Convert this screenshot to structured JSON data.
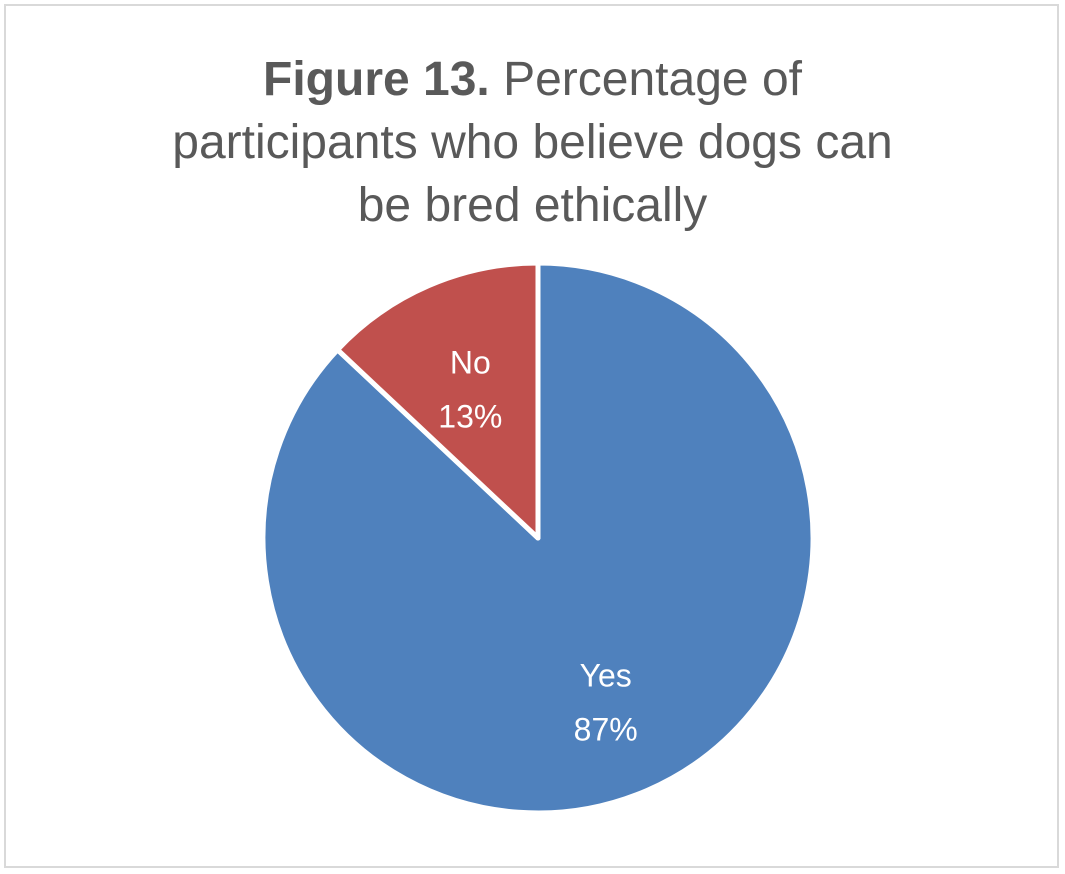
{
  "title": {
    "prefix": "Figure 13.",
    "line1": "Percentage of",
    "line2": "participants who believe dogs can",
    "line3": "be bred ethically"
  },
  "chart_data": {
    "type": "pie",
    "title": "Figure 13. Percentage of participants who believe dogs can be bred ethically",
    "categories": [
      "Yes",
      "No"
    ],
    "values": [
      87,
      13
    ],
    "data_labels": [
      "87%",
      "13%"
    ],
    "colors": [
      "#4f81bd",
      "#c0504d"
    ],
    "start": "12 o'clock",
    "direction": "clockwise",
    "legend": "none"
  }
}
